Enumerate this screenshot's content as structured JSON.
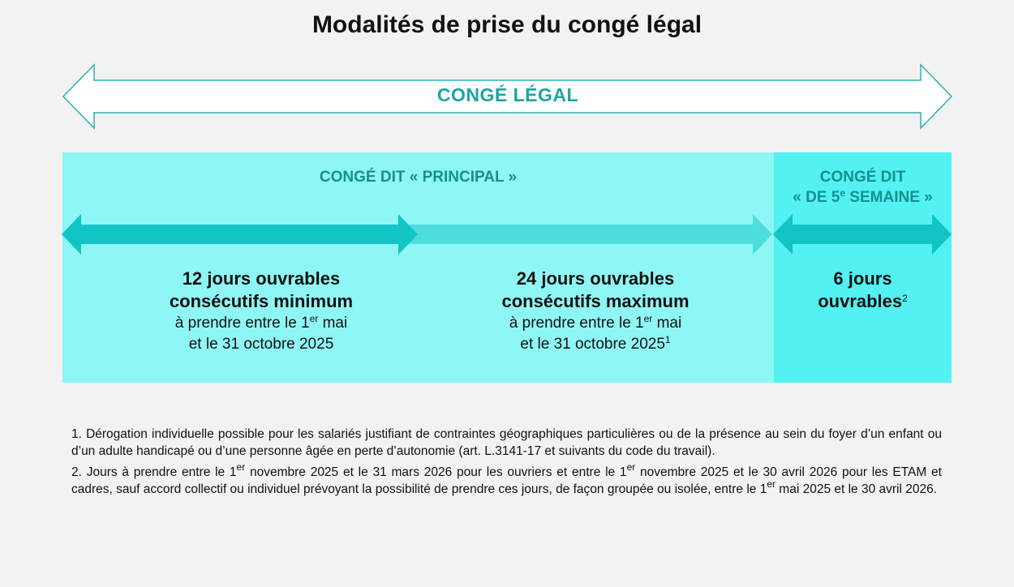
{
  "title": "Modalités de prise du congé légal",
  "big_arrow": {
    "label": "CONGÉ LÉGAL"
  },
  "colors": {
    "light_panel": "#8ff6f6",
    "strong_panel": "#53f1f1",
    "teal_text": "#1ea4a4",
    "arrow_dark": "#12c4c4",
    "arrow_light": "#4ddddd"
  },
  "principal": {
    "heading": "CONGÉ DIT « PRINCIPAL »",
    "minimum": {
      "bold1": "12 jours ouvrables",
      "bold2": "consécutifs minimum",
      "sub1_pre": "à prendre entre le 1",
      "sub1_sup": "er",
      "sub1_post": " mai",
      "sub2": "et le 31 octobre 2025"
    },
    "maximum": {
      "bold1": "24 jours ouvrables",
      "bold2": "consécutifs maximum",
      "sub1_pre": "à prendre entre le 1",
      "sub1_sup": "er",
      "sub1_post": " mai",
      "sub2": "et le 31 octobre 2025",
      "note_ref": "1"
    }
  },
  "fifth_week": {
    "heading1": "CONGÉ DIT",
    "heading2_pre": "« DE 5",
    "heading2_sup": "e",
    "heading2_post": " SEMAINE »",
    "bold1": "6 jours",
    "bold2": "ouvrables",
    "note_ref": "2"
  },
  "footnotes": {
    "n1": "1. Dérogation individuelle possible pour les salariés justifiant de contraintes géographiques particulières ou de la présence au sein du foyer d’un enfant ou d’un adulte handicapé ou d’une personne âgée en perte d’autonomie (art. L.3141-17 et suivants du code du travail).",
    "n2_a": "2. Jours à prendre entre le 1",
    "n2_sup1": "er",
    "n2_b": " novembre 2025 et le 31 mars 2026 pour les ouvriers et entre le 1",
    "n2_sup2": "er",
    "n2_c": " novembre 2025 et le 30 avril 2026 pour les ETAM et cadres, sauf accord collectif ou individuel prévoyant la possibilité de prendre ces jours, de façon groupée ou isolée, entre le 1",
    "n2_sup3": "er",
    "n2_d": " mai 2025 et le 30 avril 2026."
  }
}
